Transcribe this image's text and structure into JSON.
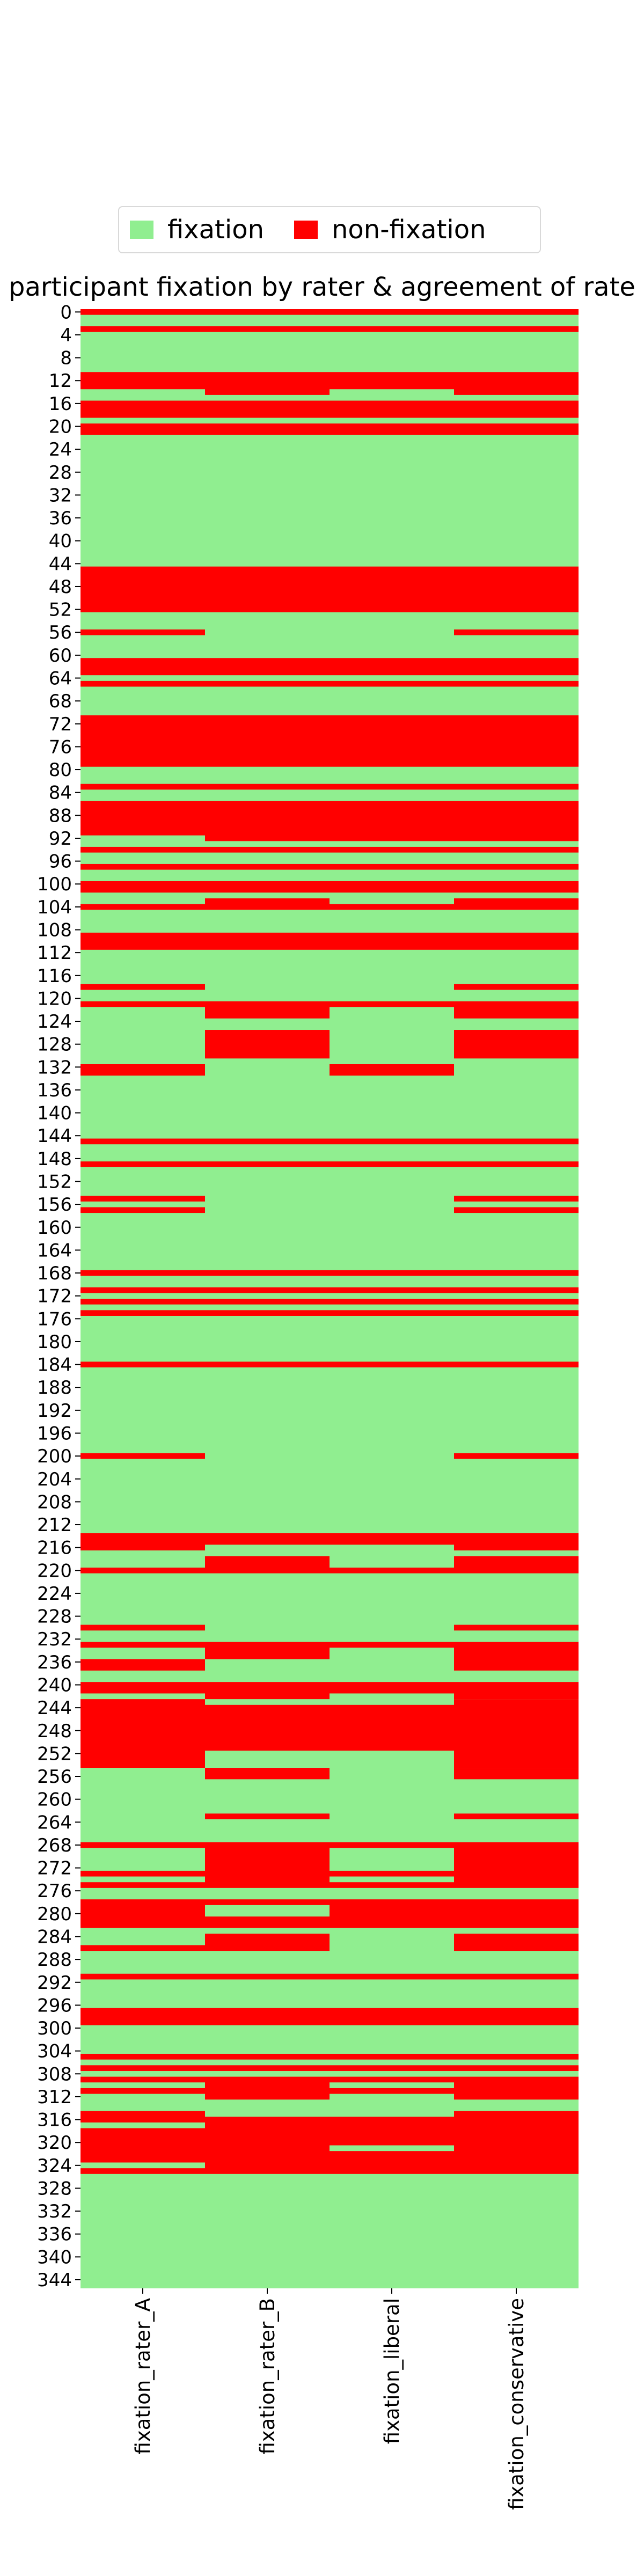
{
  "colors": {
    "fixation": "#90ee90",
    "non_fixation": "#ff0000"
  },
  "legend": [
    {
      "label": "fixation",
      "color": "#90ee90"
    },
    {
      "label": "non-fixation",
      "color": "#ff0000"
    }
  ],
  "chart_data": {
    "type": "heatmap",
    "title": "participant fixation by rater & agreement of rate",
    "xlabel": "",
    "ylabel": "",
    "columns": [
      "fixation_rater_A",
      "fixation_rater_B",
      "fixation_liberal",
      "fixation_conservative"
    ],
    "row_count": 346,
    "y_tick_labels": [
      "0",
      "4",
      "8",
      "12",
      "16",
      "20",
      "24",
      "28",
      "32",
      "36",
      "40",
      "44",
      "48",
      "52",
      "56",
      "60",
      "64",
      "68",
      "72",
      "76",
      "80",
      "84",
      "88",
      "92",
      "96",
      "100",
      "104",
      "108",
      "112",
      "116",
      "120",
      "124",
      "128",
      "132",
      "136",
      "140",
      "144",
      "148",
      "152",
      "156",
      "160",
      "164",
      "168",
      "172",
      "176",
      "180",
      "184",
      "188",
      "192",
      "196",
      "200",
      "204",
      "208",
      "212",
      "216",
      "220",
      "224",
      "228",
      "232",
      "236",
      "240",
      "244",
      "248",
      "252",
      "256",
      "260",
      "264",
      "268",
      "272",
      "276",
      "280",
      "284",
      "288",
      "292",
      "296",
      "300",
      "304",
      "308",
      "312",
      "316",
      "320",
      "324",
      "328",
      "332",
      "336",
      "340",
      "344"
    ],
    "value_legend": {
      "1": "fixation",
      "0": "non-fixation"
    },
    "non_fixation_runs": {
      "fixation_rater_A": [
        [
          0,
          0
        ],
        [
          3,
          3
        ],
        [
          11,
          13
        ],
        [
          16,
          18
        ],
        [
          20,
          21
        ],
        [
          45,
          52
        ],
        [
          56,
          56
        ],
        [
          61,
          63
        ],
        [
          65,
          65
        ],
        [
          71,
          79
        ],
        [
          83,
          83
        ],
        [
          86,
          91
        ],
        [
          94,
          94
        ],
        [
          97,
          97
        ],
        [
          100,
          101
        ],
        [
          104,
          104
        ],
        [
          109,
          111
        ],
        [
          118,
          118
        ],
        [
          121,
          121
        ],
        [
          132,
          133
        ],
        [
          145,
          145
        ],
        [
          149,
          149
        ],
        [
          155,
          155
        ],
        [
          157,
          157
        ],
        [
          168,
          168
        ],
        [
          171,
          171
        ],
        [
          173,
          173
        ],
        [
          175,
          175
        ],
        [
          184,
          184
        ],
        [
          200,
          200
        ],
        [
          214,
          216
        ],
        [
          220,
          220
        ],
        [
          230,
          230
        ],
        [
          233,
          233
        ],
        [
          236,
          237
        ],
        [
          240,
          241
        ],
        [
          243,
          254
        ],
        [
          268,
          268
        ],
        [
          273,
          273
        ],
        [
          275,
          275
        ],
        [
          278,
          282
        ],
        [
          286,
          286
        ],
        [
          291,
          291
        ],
        [
          297,
          299
        ],
        [
          305,
          305
        ],
        [
          307,
          307
        ],
        [
          309,
          309
        ],
        [
          311,
          311
        ],
        [
          315,
          316
        ],
        [
          318,
          323
        ],
        [
          325,
          325
        ]
      ],
      "fixation_rater_B": [
        [
          0,
          0
        ],
        [
          3,
          3
        ],
        [
          11,
          14
        ],
        [
          16,
          18
        ],
        [
          20,
          21
        ],
        [
          45,
          52
        ],
        [
          61,
          63
        ],
        [
          65,
          65
        ],
        [
          71,
          79
        ],
        [
          83,
          83
        ],
        [
          86,
          92
        ],
        [
          94,
          94
        ],
        [
          97,
          97
        ],
        [
          100,
          101
        ],
        [
          103,
          104
        ],
        [
          109,
          111
        ],
        [
          121,
          123
        ],
        [
          126,
          130
        ],
        [
          145,
          145
        ],
        [
          149,
          149
        ],
        [
          168,
          168
        ],
        [
          171,
          171
        ],
        [
          173,
          173
        ],
        [
          175,
          175
        ],
        [
          184,
          184
        ],
        [
          214,
          215
        ],
        [
          218,
          220
        ],
        [
          233,
          235
        ],
        [
          240,
          242
        ],
        [
          244,
          251
        ],
        [
          255,
          256
        ],
        [
          263,
          263
        ],
        [
          268,
          275
        ],
        [
          278,
          278
        ],
        [
          281,
          282
        ],
        [
          284,
          286
        ],
        [
          291,
          291
        ],
        [
          297,
          299
        ],
        [
          305,
          305
        ],
        [
          307,
          307
        ],
        [
          309,
          312
        ],
        [
          316,
          325
        ]
      ],
      "fixation_rater_liberal": [
        [
          0,
          0
        ],
        [
          3,
          3
        ],
        [
          11,
          13
        ],
        [
          16,
          18
        ],
        [
          20,
          21
        ],
        [
          45,
          52
        ],
        [
          61,
          63
        ],
        [
          65,
          65
        ],
        [
          71,
          79
        ],
        [
          83,
          83
        ],
        [
          86,
          92
        ],
        [
          94,
          94
        ],
        [
          97,
          97
        ],
        [
          100,
          101
        ],
        [
          104,
          104
        ],
        [
          109,
          111
        ],
        [
          121,
          121
        ],
        [
          132,
          133
        ],
        [
          145,
          145
        ],
        [
          149,
          149
        ],
        [
          168,
          168
        ],
        [
          171,
          171
        ],
        [
          173,
          173
        ],
        [
          175,
          175
        ],
        [
          184,
          184
        ],
        [
          214,
          215
        ],
        [
          220,
          220
        ],
        [
          233,
          233
        ],
        [
          240,
          241
        ],
        [
          244,
          251
        ],
        [
          268,
          268
        ],
        [
          273,
          273
        ],
        [
          275,
          275
        ],
        [
          278,
          282
        ],
        [
          291,
          291
        ],
        [
          297,
          299
        ],
        [
          305,
          305
        ],
        [
          307,
          307
        ],
        [
          309,
          309
        ],
        [
          311,
          311
        ],
        [
          316,
          320
        ],
        [
          322,
          325
        ]
      ],
      "fixation_conservative": [
        [
          0,
          0
        ],
        [
          3,
          3
        ],
        [
          11,
          14
        ],
        [
          16,
          18
        ],
        [
          20,
          21
        ],
        [
          45,
          52
        ],
        [
          56,
          56
        ],
        [
          61,
          63
        ],
        [
          65,
          65
        ],
        [
          71,
          79
        ],
        [
          83,
          83
        ],
        [
          86,
          92
        ],
        [
          94,
          94
        ],
        [
          97,
          97
        ],
        [
          100,
          101
        ],
        [
          103,
          104
        ],
        [
          109,
          111
        ],
        [
          118,
          118
        ],
        [
          121,
          123
        ],
        [
          126,
          130
        ],
        [
          145,
          145
        ],
        [
          149,
          149
        ],
        [
          155,
          155
        ],
        [
          157,
          157
        ],
        [
          168,
          168
        ],
        [
          171,
          171
        ],
        [
          173,
          173
        ],
        [
          175,
          175
        ],
        [
          184,
          184
        ],
        [
          200,
          200
        ],
        [
          214,
          216
        ],
        [
          218,
          220
        ],
        [
          230,
          230
        ],
        [
          233,
          237
        ],
        [
          240,
          242
        ],
        [
          243,
          254
        ],
        [
          255,
          256
        ],
        [
          263,
          263
        ],
        [
          268,
          275
        ],
        [
          278,
          282
        ],
        [
          284,
          286
        ],
        [
          291,
          291
        ],
        [
          297,
          299
        ],
        [
          305,
          305
        ],
        [
          307,
          307
        ],
        [
          309,
          312
        ],
        [
          315,
          325
        ]
      ]
    }
  }
}
